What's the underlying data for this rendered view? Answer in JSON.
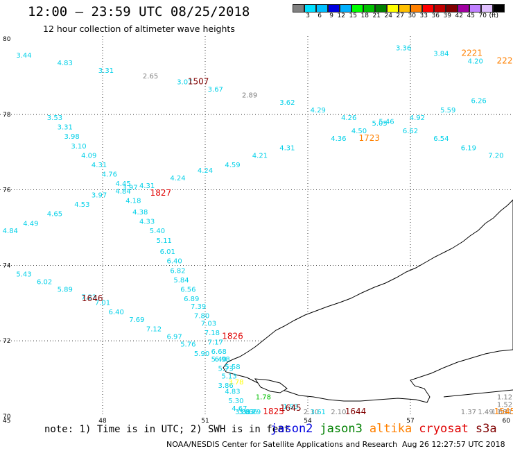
{
  "header": {
    "title": "12:00 – 23:59 UTC 08/25/2018",
    "subtitle": "12 hour collection of altimeter wave heights"
  },
  "scale_legend": {
    "colors": [
      "#808080",
      "#00e0ff",
      "#00bfff",
      "#0000e0",
      "#00b0ff",
      "#00ff00",
      "#00c000",
      "#008000",
      "#ffff00",
      "#ffc000",
      "#ff8000",
      "#ff0000",
      "#c00000",
      "#800000",
      "#a000a0",
      "#c080ff",
      "#e0c0ff",
      "#000000"
    ],
    "labels": [
      "3",
      "6",
      "9",
      "12",
      "15",
      "18",
      "21",
      "24",
      "27",
      "30",
      "33",
      "36",
      "39",
      "42",
      "45",
      "70",
      "(ft)"
    ]
  },
  "map": {
    "lon_labels": [
      "45",
      "48",
      "51",
      "54",
      "57",
      "60"
    ],
    "lat_labels": [
      "80",
      "78",
      "76",
      "74",
      "72",
      "70"
    ],
    "wave_heights": [
      {
        "text": "3.44",
        "lon": 45.7,
        "lat": 79.5,
        "color": "#00d0e8"
      },
      {
        "text": "4.83",
        "lon": 46.9,
        "lat": 79.3,
        "color": "#00d0e8"
      },
      {
        "text": "3.31",
        "lon": 48.1,
        "lat": 79.1,
        "color": "#00d0e8"
      },
      {
        "text": "2.65",
        "lon": 49.4,
        "lat": 78.95,
        "color": "#808080"
      },
      {
        "text": "3.07",
        "lon": 50.4,
        "lat": 78.8,
        "color": "#00d0e8"
      },
      {
        "text": "3.67",
        "lon": 51.3,
        "lat": 78.6,
        "color": "#00d0e8"
      },
      {
        "text": "2.89",
        "lon": 52.3,
        "lat": 78.45,
        "color": "#808080"
      },
      {
        "text": "3.62",
        "lon": 53.4,
        "lat": 78.25,
        "color": "#00d0e8"
      },
      {
        "text": "4.29",
        "lon": 54.3,
        "lat": 78.05,
        "color": "#00d0e8"
      },
      {
        "text": "4.26",
        "lon": 55.2,
        "lat": 77.85,
        "color": "#00d0e8"
      },
      {
        "text": "4.50",
        "lon": 55.5,
        "lat": 77.5,
        "color": "#00d0e8"
      },
      {
        "text": "4.36",
        "lon": 54.9,
        "lat": 77.3,
        "color": "#00d0e8"
      },
      {
        "text": "5.05",
        "lon": 56.1,
        "lat": 77.7,
        "color": "#00d0e8"
      },
      {
        "text": "5.46",
        "lon": 56.3,
        "lat": 77.75,
        "color": "#00d0e8"
      },
      {
        "text": "4.92",
        "lon": 57.2,
        "lat": 77.85,
        "color": "#00d0e8"
      },
      {
        "text": "6.62",
        "lon": 57.0,
        "lat": 77.5,
        "color": "#00d0e8"
      },
      {
        "text": "5.59",
        "lon": 58.1,
        "lat": 78.05,
        "color": "#00d0e8"
      },
      {
        "text": "6.54",
        "lon": 57.9,
        "lat": 77.3,
        "color": "#00d0e8"
      },
      {
        "text": "6.26",
        "lon": 59.0,
        "lat": 78.3,
        "color": "#00d0e8"
      },
      {
        "text": "6.19",
        "lon": 58.7,
        "lat": 77.05,
        "color": "#00d0e8"
      },
      {
        "text": "7.20",
        "lon": 59.5,
        "lat": 76.85,
        "color": "#00d0e8"
      },
      {
        "text": "3.36",
        "lon": 56.8,
        "lat": 79.7,
        "color": "#00d0e8"
      },
      {
        "text": "3.84",
        "lon": 57.9,
        "lat": 79.55,
        "color": "#00d0e8"
      },
      {
        "text": "4.20",
        "lon": 58.9,
        "lat": 79.35,
        "color": "#00d0e8"
      },
      {
        "text": "4.31",
        "lon": 53.4,
        "lat": 77.05,
        "color": "#00d0e8"
      },
      {
        "text": "4.21",
        "lon": 52.6,
        "lat": 76.85,
        "color": "#00d0e8"
      },
      {
        "text": "4.59",
        "lon": 51.8,
        "lat": 76.6,
        "color": "#00d0e8"
      },
      {
        "text": "4.24",
        "lon": 51.0,
        "lat": 76.45,
        "color": "#00d0e8"
      },
      {
        "text": "4.24",
        "lon": 50.2,
        "lat": 76.25,
        "color": "#00d0e8"
      },
      {
        "text": "4.31",
        "lon": 49.3,
        "lat": 76.05,
        "color": "#00d0e8"
      },
      {
        "text": "3.53",
        "lon": 46.6,
        "lat": 77.85,
        "color": "#00d0e8"
      },
      {
        "text": "3.31",
        "lon": 46.9,
        "lat": 77.6,
        "color": "#00d0e8"
      },
      {
        "text": "3.98",
        "lon": 47.1,
        "lat": 77.35,
        "color": "#00d0e8"
      },
      {
        "text": "3.10",
        "lon": 47.3,
        "lat": 77.1,
        "color": "#00d0e8"
      },
      {
        "text": "4.09",
        "lon": 47.6,
        "lat": 76.85,
        "color": "#00d0e8"
      },
      {
        "text": "4.31",
        "lon": 47.9,
        "lat": 76.6,
        "color": "#00d0e8"
      },
      {
        "text": "4.76",
        "lon": 48.2,
        "lat": 76.35,
        "color": "#00d0e8"
      },
      {
        "text": "4.45",
        "lon": 48.6,
        "lat": 76.1,
        "color": "#00d0e8"
      },
      {
        "text": "3.97",
        "lon": 48.8,
        "lat": 76.0,
        "color": "#00d0e8"
      },
      {
        "text": "4.84",
        "lon": 48.6,
        "lat": 75.9,
        "color": "#00d0e8"
      },
      {
        "text": "3.97",
        "lon": 47.9,
        "lat": 75.8,
        "color": "#00d0e8"
      },
      {
        "text": "4.18",
        "lon": 48.9,
        "lat": 75.65,
        "color": "#00d0e8"
      },
      {
        "text": "4.53",
        "lon": 47.4,
        "lat": 75.55,
        "color": "#00d0e8"
      },
      {
        "text": "4.38",
        "lon": 49.1,
        "lat": 75.35,
        "color": "#00d0e8"
      },
      {
        "text": "4.65",
        "lon": 46.6,
        "lat": 75.3,
        "color": "#00d0e8"
      },
      {
        "text": "4.33",
        "lon": 49.3,
        "lat": 75.1,
        "color": "#00d0e8"
      },
      {
        "text": "4.49",
        "lon": 45.9,
        "lat": 75.05,
        "color": "#00d0e8"
      },
      {
        "text": "4.84",
        "lon": 45.3,
        "lat": 74.85,
        "color": "#00d0e8"
      },
      {
        "text": "5.40",
        "lon": 49.6,
        "lat": 74.85,
        "color": "#00d0e8"
      },
      {
        "text": "5.11",
        "lon": 49.8,
        "lat": 74.6,
        "color": "#00d0e8"
      },
      {
        "text": "6.01",
        "lon": 49.9,
        "lat": 74.3,
        "color": "#00d0e8"
      },
      {
        "text": "6.40",
        "lon": 50.1,
        "lat": 74.05,
        "color": "#00d0e8"
      },
      {
        "text": "6.82",
        "lon": 50.2,
        "lat": 73.8,
        "color": "#00d0e8"
      },
      {
        "text": "5.84",
        "lon": 50.3,
        "lat": 73.55,
        "color": "#00d0e8"
      },
      {
        "text": "6.56",
        "lon": 50.5,
        "lat": 73.3,
        "color": "#00d0e8"
      },
      {
        "text": "6.89",
        "lon": 50.6,
        "lat": 73.05,
        "color": "#00d0e8"
      },
      {
        "text": "7.39",
        "lon": 50.8,
        "lat": 72.85,
        "color": "#00d0e8"
      },
      {
        "text": "7.80",
        "lon": 50.9,
        "lat": 72.6,
        "color": "#00d0e8"
      },
      {
        "text": "7.03",
        "lon": 51.1,
        "lat": 72.4,
        "color": "#00d0e8"
      },
      {
        "text": "7.18",
        "lon": 51.2,
        "lat": 72.15,
        "color": "#00d0e8"
      },
      {
        "text": "7.17",
        "lon": 51.3,
        "lat": 71.9,
        "color": "#00d0e8"
      },
      {
        "text": "6.68",
        "lon": 51.4,
        "lat": 71.65,
        "color": "#00d0e8"
      },
      {
        "text": "6.98",
        "lon": 51.5,
        "lat": 71.45,
        "color": "#00d0e8"
      },
      {
        "text": "5.73",
        "lon": 51.6,
        "lat": 71.2,
        "color": "#00d0e8"
      },
      {
        "text": "5.13",
        "lon": 51.7,
        "lat": 71.0,
        "color": "#00d0e8"
      },
      {
        "text": "3.86",
        "lon": 51.6,
        "lat": 70.75,
        "color": "#00d0e8"
      },
      {
        "text": "5.43",
        "lon": 45.7,
        "lat": 73.7,
        "color": "#00d0e8"
      },
      {
        "text": "6.02",
        "lon": 46.3,
        "lat": 73.5,
        "color": "#00d0e8"
      },
      {
        "text": "5.89",
        "lon": 46.9,
        "lat": 73.3,
        "color": "#00d0e8"
      },
      {
        "text": "7.22",
        "lon": 47.6,
        "lat": 73.1,
        "color": "#00d0e8"
      },
      {
        "text": "7.01",
        "lon": 48.0,
        "lat": 72.95,
        "color": "#00d0e8"
      },
      {
        "text": "6.40",
        "lon": 48.4,
        "lat": 72.7,
        "color": "#00d0e8"
      },
      {
        "text": "7.69",
        "lon": 49.0,
        "lat": 72.5,
        "color": "#00d0e8"
      },
      {
        "text": "7.12",
        "lon": 49.5,
        "lat": 72.25,
        "color": "#00d0e8"
      },
      {
        "text": "6.97",
        "lon": 50.1,
        "lat": 72.05,
        "color": "#00d0e8"
      },
      {
        "text": "5.76",
        "lon": 50.5,
        "lat": 71.85,
        "color": "#00d0e8"
      },
      {
        "text": "5.90",
        "lon": 50.9,
        "lat": 71.6,
        "color": "#00d0e8"
      },
      {
        "text": "5.40",
        "lon": 51.4,
        "lat": 71.45,
        "color": "#00d0e8"
      },
      {
        "text": "5.58",
        "lon": 51.8,
        "lat": 71.25,
        "color": "#00d0e8"
      },
      {
        "text": "4.83",
        "lon": 51.8,
        "lat": 70.6,
        "color": "#00d0e8"
      },
      {
        "text": "5.30",
        "lon": 51.9,
        "lat": 70.35,
        "color": "#00d0e8"
      },
      {
        "text": "4.67",
        "lon": 52.0,
        "lat": 70.15,
        "color": "#00d0e8"
      },
      {
        "text": "3.88",
        "lon": 52.1,
        "lat": 69.9,
        "color": "#00d0e8"
      },
      {
        "text": "3.63",
        "lon": 52.2,
        "lat": 69.7,
        "color": "#00d0e8"
      },
      {
        "text": "3.66",
        "lon": 52.3,
        "lat": 69.5,
        "color": "#00d0e8"
      },
      {
        "text": "3.79",
        "lon": 52.4,
        "lat": 69.3,
        "color": "#00d0e8"
      },
      {
        "text": "1.93",
        "lon": 53.5,
        "lat": 70.2,
        "color": "#00d0e8"
      },
      {
        "text": "1.78",
        "lon": 52.7,
        "lat": 70.45,
        "color": "#00c000"
      },
      {
        "text": "3.78",
        "lon": 51.9,
        "lat": 70.85,
        "color": "#ffff00"
      },
      {
        "text": "2.10",
        "lon": 54.1,
        "lat": 69.85,
        "color": "#808080"
      },
      {
        "text": "3.61",
        "lon": 54.3,
        "lat": 69.6,
        "color": "#00d0e8"
      },
      {
        "text": "2.10",
        "lon": 54.9,
        "lat": 69.4,
        "color": "#808080"
      },
      {
        "text": "1.37",
        "lon": 58.7,
        "lat": 69.6,
        "color": "#808080"
      },
      {
        "text": "1.49",
        "lon": 59.2,
        "lat": 69.7,
        "color": "#808080"
      },
      {
        "text": "1.68",
        "lon": 59.6,
        "lat": 69.9,
        "color": "#808080"
      },
      {
        "text": "1.31",
        "lon": 60.0,
        "lat": 70.05,
        "color": "#808080"
      },
      {
        "text": "1.52",
        "lon": 60.4,
        "lat": 70.25,
        "color": "#808080"
      },
      {
        "text": "1.12",
        "lon": 60.8,
        "lat": 70.45,
        "color": "#808080"
      }
    ],
    "pass_times": [
      {
        "text": "1507",
        "lon": 50.8,
        "lat": 78.8,
        "color": "#800000"
      },
      {
        "text": "1723",
        "lon": 55.8,
        "lat": 77.3,
        "color": "#ff8000"
      },
      {
        "text": "2221",
        "lon": 58.8,
        "lat": 79.55,
        "color": "#ff8000"
      },
      {
        "text": "222",
        "lon": 60.3,
        "lat": 79.35,
        "color": "#ff8000"
      },
      {
        "text": "1827",
        "lon": 49.7,
        "lat": 75.85,
        "color": "#e00000"
      },
      {
        "text": "1646",
        "lon": 47.7,
        "lat": 73.05,
        "color": "#800000"
      },
      {
        "text": "1826",
        "lon": 51.8,
        "lat": 72.05,
        "color": "#e00000"
      },
      {
        "text": "1645",
        "lon": 53.5,
        "lat": 70.15,
        "color": "#800000"
      },
      {
        "text": "1825",
        "lon": 53.0,
        "lat": 69.3,
        "color": "#e00000"
      },
      {
        "text": "1644",
        "lon": 55.4,
        "lat": 69.4,
        "color": "#800000"
      },
      {
        "text": "1545",
        "lon": 60.3,
        "lat": 69.85,
        "color": "#ff8000"
      }
    ]
  },
  "footer": {
    "note": "note: 1) Time is in UTC; 2) SWH is in feet",
    "satellites": [
      {
        "name": "jason2",
        "color": "#0000e0"
      },
      {
        "name": "jason3",
        "color": "#008000"
      },
      {
        "name": "altika",
        "color": "#ff8000"
      },
      {
        "name": "cryosat",
        "color": "#e00000"
      },
      {
        "name": "s3a",
        "color": "#800000"
      }
    ],
    "credit": "NOAA/NESDIS Center for Satellite Applications and Research",
    "timestamp": "Aug 26 12:27:57 UTC 2018"
  }
}
